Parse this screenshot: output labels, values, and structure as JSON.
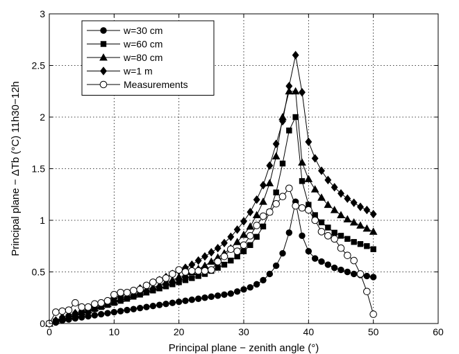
{
  "chart_data": {
    "type": "line",
    "xlabel": "Principal plane − zenith angle (°)",
    "ylabel": "Principal plane − ΔTb (°C) 11h30−12h",
    "xlim": [
      0,
      60
    ],
    "ylim": [
      0,
      3
    ],
    "xticks": [
      "0",
      "10",
      "20",
      "30",
      "40",
      "50",
      "60"
    ],
    "yticks": [
      "0",
      "0.5",
      "1",
      "1.5",
      "2",
      "2.5",
      "3"
    ],
    "grid": true,
    "legend_position": "top-left",
    "series": [
      {
        "name": "w=30 cm",
        "marker": "circle-filled",
        "x": [
          0,
          1,
          2,
          3,
          4,
          5,
          6,
          7,
          8,
          9,
          10,
          11,
          12,
          13,
          14,
          15,
          16,
          17,
          18,
          19,
          20,
          21,
          22,
          23,
          24,
          25,
          26,
          27,
          28,
          29,
          30,
          31,
          32,
          33,
          34,
          35,
          36,
          37,
          38,
          39,
          40,
          41,
          42,
          43,
          44,
          45,
          46,
          47,
          48,
          49,
          50
        ],
        "y": [
          0.0,
          0.01,
          0.03,
          0.04,
          0.05,
          0.06,
          0.07,
          0.08,
          0.09,
          0.1,
          0.11,
          0.12,
          0.13,
          0.14,
          0.15,
          0.16,
          0.17,
          0.18,
          0.19,
          0.2,
          0.21,
          0.22,
          0.23,
          0.24,
          0.25,
          0.26,
          0.27,
          0.28,
          0.29,
          0.31,
          0.33,
          0.35,
          0.38,
          0.42,
          0.48,
          0.56,
          0.68,
          0.88,
          1.18,
          0.85,
          0.7,
          0.63,
          0.6,
          0.57,
          0.54,
          0.52,
          0.5,
          0.48,
          0.47,
          0.46,
          0.45
        ]
      },
      {
        "name": "w=60 cm",
        "marker": "square-filled",
        "x": [
          0,
          1,
          2,
          3,
          4,
          5,
          6,
          7,
          8,
          9,
          10,
          11,
          12,
          13,
          14,
          15,
          16,
          17,
          18,
          19,
          20,
          21,
          22,
          23,
          24,
          25,
          26,
          27,
          28,
          29,
          30,
          31,
          32,
          33,
          34,
          35,
          36,
          37,
          38,
          39,
          40,
          41,
          42,
          43,
          44,
          45,
          46,
          47,
          48,
          49,
          50
        ],
        "y": [
          0.0,
          0.02,
          0.04,
          0.06,
          0.08,
          0.1,
          0.12,
          0.14,
          0.16,
          0.18,
          0.2,
          0.22,
          0.24,
          0.26,
          0.28,
          0.3,
          0.32,
          0.34,
          0.36,
          0.38,
          0.4,
          0.42,
          0.44,
          0.46,
          0.48,
          0.51,
          0.54,
          0.57,
          0.61,
          0.65,
          0.7,
          0.76,
          0.84,
          0.94,
          1.08,
          1.27,
          1.55,
          1.87,
          2.0,
          1.38,
          1.15,
          1.05,
          0.98,
          0.93,
          0.88,
          0.85,
          0.82,
          0.79,
          0.77,
          0.75,
          0.72
        ]
      },
      {
        "name": "w=80 cm",
        "marker": "triangle-filled",
        "x": [
          0,
          1,
          2,
          3,
          4,
          5,
          6,
          7,
          8,
          9,
          10,
          11,
          12,
          13,
          14,
          15,
          16,
          17,
          18,
          19,
          20,
          21,
          22,
          23,
          24,
          25,
          26,
          27,
          28,
          29,
          30,
          31,
          32,
          33,
          34,
          35,
          36,
          37,
          38,
          39,
          40,
          41,
          42,
          43,
          44,
          45,
          46,
          47,
          48,
          49,
          50
        ],
        "y": [
          0.0,
          0.03,
          0.05,
          0.07,
          0.09,
          0.11,
          0.13,
          0.15,
          0.17,
          0.19,
          0.21,
          0.24,
          0.26,
          0.28,
          0.3,
          0.33,
          0.35,
          0.37,
          0.4,
          0.42,
          0.45,
          0.47,
          0.5,
          0.53,
          0.56,
          0.6,
          0.64,
          0.68,
          0.73,
          0.79,
          0.86,
          0.94,
          1.05,
          1.18,
          1.36,
          1.62,
          2.0,
          2.25,
          2.25,
          1.56,
          1.4,
          1.3,
          1.22,
          1.15,
          1.1,
          1.05,
          1.01,
          0.98,
          0.95,
          0.92,
          0.89
        ]
      },
      {
        "name": "w=1 m",
        "marker": "diamond-filled",
        "x": [
          0,
          1,
          2,
          3,
          4,
          5,
          6,
          7,
          8,
          9,
          10,
          11,
          12,
          13,
          14,
          15,
          16,
          17,
          18,
          19,
          20,
          21,
          22,
          23,
          24,
          25,
          26,
          27,
          28,
          29,
          30,
          31,
          32,
          33,
          34,
          35,
          36,
          37,
          38,
          39,
          40,
          41,
          42,
          43,
          44,
          45,
          46,
          47,
          48,
          49,
          50
        ],
        "y": [
          0.0,
          0.03,
          0.06,
          0.08,
          0.1,
          0.12,
          0.14,
          0.17,
          0.19,
          0.21,
          0.24,
          0.26,
          0.29,
          0.31,
          0.34,
          0.36,
          0.39,
          0.42,
          0.45,
          0.48,
          0.51,
          0.54,
          0.57,
          0.61,
          0.65,
          0.69,
          0.73,
          0.78,
          0.84,
          0.91,
          0.99,
          1.08,
          1.2,
          1.34,
          1.53,
          1.74,
          1.96,
          2.3,
          2.6,
          2.24,
          1.76,
          1.6,
          1.48,
          1.39,
          1.32,
          1.26,
          1.21,
          1.17,
          1.13,
          1.1,
          1.06
        ]
      },
      {
        "name": "Measurements",
        "marker": "circle-open",
        "x": [
          0,
          1,
          2,
          3,
          4,
          5,
          6,
          7,
          8,
          9,
          10,
          11,
          12,
          13,
          14,
          15,
          16,
          17,
          18,
          19,
          20,
          21,
          22,
          23,
          24,
          25,
          26,
          27,
          28,
          29,
          30,
          31,
          32,
          33,
          34,
          35,
          36,
          37,
          38,
          39,
          40,
          41,
          42,
          43,
          44,
          45,
          46,
          47,
          48,
          49,
          50
        ],
        "y": [
          0.0,
          0.11,
          0.12,
          0.13,
          0.2,
          0.16,
          0.16,
          0.19,
          0.2,
          0.22,
          0.28,
          0.3,
          0.3,
          0.32,
          0.33,
          0.37,
          0.4,
          0.42,
          0.44,
          0.48,
          0.52,
          0.5,
          0.51,
          0.51,
          0.51,
          0.52,
          0.6,
          0.65,
          0.72,
          0.7,
          0.76,
          0.85,
          0.95,
          1.04,
          1.08,
          1.16,
          1.23,
          1.31,
          1.14,
          1.12,
          1.1,
          1.0,
          0.89,
          0.85,
          0.82,
          0.73,
          0.66,
          0.61,
          0.48,
          0.31,
          0.09
        ]
      }
    ]
  }
}
